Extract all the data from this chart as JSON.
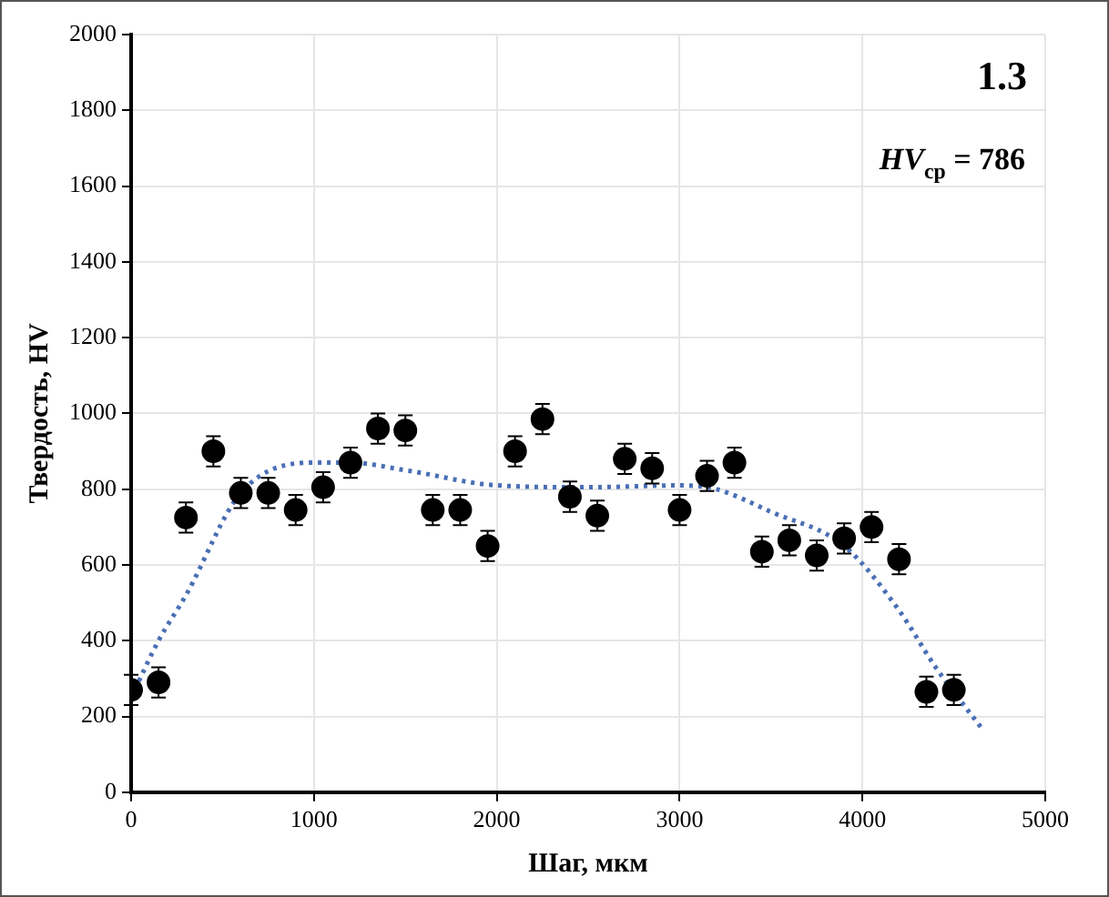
{
  "chart_data": {
    "type": "scatter",
    "xlabel": "Шаг, мкм",
    "ylabel": "Твердость, HV",
    "annotations": [
      "1.3",
      "HV$_{ср}$ = 786"
    ],
    "xlim": [
      0,
      5000
    ],
    "xticks": [
      0,
      1000,
      2000,
      3000,
      4000,
      5000
    ],
    "ylim": [
      0,
      2000
    ],
    "yticks": [
      0,
      200,
      400,
      600,
      800,
      1000,
      1200,
      1400,
      1600,
      1800,
      2000
    ],
    "grid": true,
    "legend": false,
    "marker": "circle",
    "series": [
      {
        "color": "#000000",
        "x": [
          0,
          150,
          300,
          450,
          600,
          750,
          900,
          1050,
          1200,
          1350,
          1500,
          1650,
          1800,
          1950,
          2100,
          2250,
          2400,
          2550,
          2700,
          2850,
          3000,
          3150,
          3300,
          3450,
          3600,
          3750,
          3900,
          4050,
          4200,
          4350,
          4500
        ],
        "values": [
          270,
          290,
          725,
          900,
          790,
          790,
          745,
          805,
          870,
          960,
          955,
          745,
          745,
          650,
          900,
          985,
          780,
          730,
          880,
          855,
          745,
          835,
          870,
          635,
          665,
          625,
          670,
          700,
          615,
          265,
          270
        ],
        "errors": [
          40,
          40,
          40,
          40,
          40,
          40,
          40,
          40,
          40,
          40,
          40,
          40,
          40,
          40,
          40,
          40,
          40,
          40,
          40,
          40,
          40,
          40,
          40,
          40,
          40,
          40,
          40,
          40,
          40,
          40,
          40
        ]
      },
      {
        "type": "line",
        "color": "#4a6fb5",
        "line_style": "dotted",
        "marker": "none",
        "x": [
          0,
          150,
          300,
          600,
          1000,
          1200,
          1500,
          2000,
          2500,
          3000,
          3200,
          3500,
          3900,
          4200,
          4400,
          4650
        ],
        "values": [
          250,
          400,
          520,
          790,
          870,
          870,
          850,
          810,
          805,
          810,
          800,
          740,
          650,
          480,
          330,
          170
        ]
      }
    ]
  }
}
